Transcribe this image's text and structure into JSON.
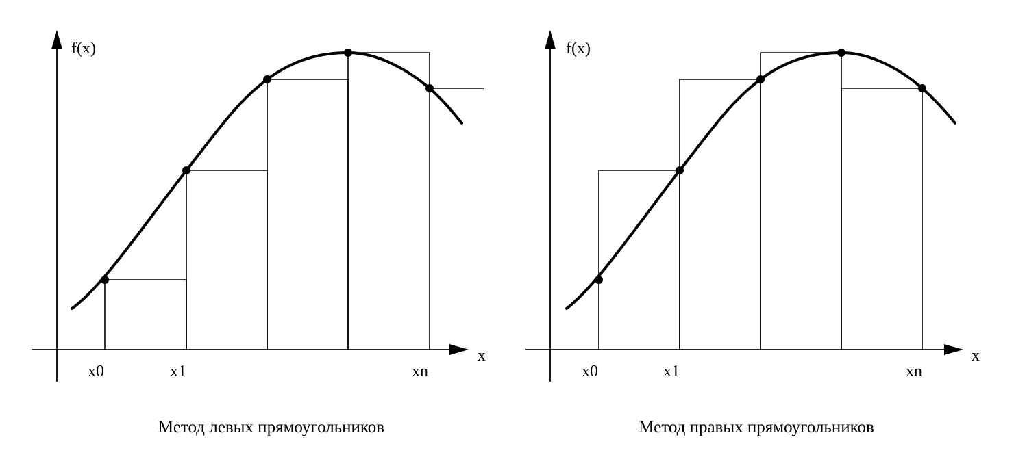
{
  "colors": {
    "ink": "#000000",
    "background": "#ffffff"
  },
  "panels": [
    {
      "method": "left",
      "y_label": "f(x)",
      "x_label": "x",
      "tick_labels": [
        "x0",
        "x1",
        "xn"
      ],
      "caption": "Метод левых прямоугольников"
    },
    {
      "method": "right",
      "y_label": "f(x)",
      "x_label": "x",
      "tick_labels": [
        "x0",
        "x1",
        "xn"
      ],
      "caption": "Метод правых прямоугольников"
    }
  ]
}
